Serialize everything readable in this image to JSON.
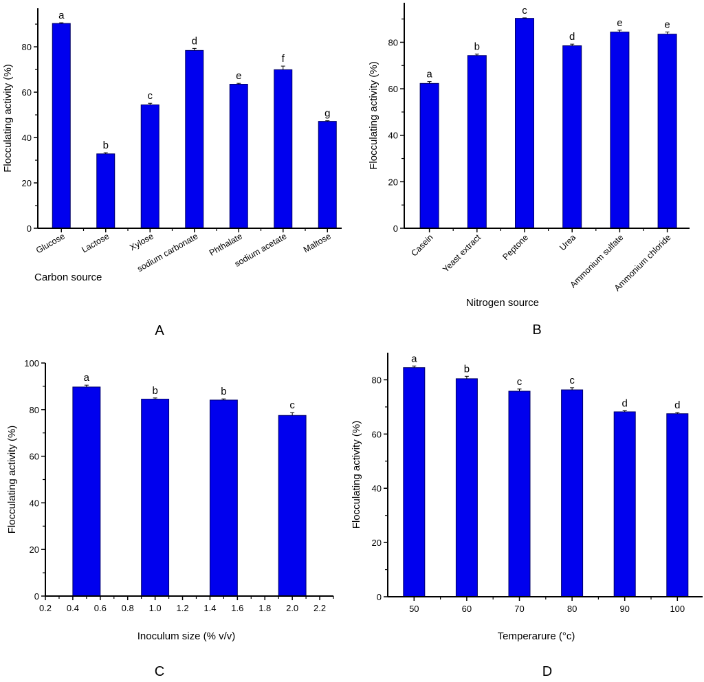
{
  "colors": {
    "bar": "#0000ee",
    "bar_edge": "#000066",
    "axis": "#000000"
  },
  "chart_data": [
    {
      "id": "A",
      "panel_label": "A",
      "type": "bar",
      "title": "",
      "xlabel": "Carbon source",
      "ylabel": "Flocculating activity (%)",
      "ylim": [
        0,
        97
      ],
      "yticks": [
        0,
        20,
        40,
        60,
        80
      ],
      "yminor_step": 10,
      "categories": [
        "Glucose",
        "Lactose",
        "Xylose",
        "sodium carbonate",
        "Phthalate",
        "sodium acetate",
        "Maltose"
      ],
      "values": [
        90.3,
        32.8,
        54.4,
        78.4,
        63.5,
        69.9,
        47.1
      ],
      "errors": [
        0.3,
        0.5,
        0.7,
        0.9,
        0.4,
        1.6,
        0.3
      ],
      "significance": [
        "a",
        "b",
        "c",
        "d",
        "e",
        "f",
        "g"
      ],
      "grid": false
    },
    {
      "id": "B",
      "panel_label": "B",
      "type": "bar",
      "title": "",
      "xlabel": "Nitrogen source",
      "ylabel": "Flocculating activity (%)",
      "ylim": [
        0,
        97
      ],
      "yticks": [
        0,
        20,
        40,
        60,
        80
      ],
      "yminor_step": 10,
      "categories": [
        "Casein",
        "Yeast extract",
        "Peptone",
        "Urea",
        "Ammonium sulfate",
        "Ammonium chloride"
      ],
      "values": [
        62.3,
        74.3,
        90.3,
        78.5,
        84.4,
        83.5
      ],
      "errors": [
        0.8,
        0.6,
        0.2,
        0.7,
        0.8,
        0.9
      ],
      "significance": [
        "a",
        "b",
        "c",
        "d",
        "e",
        "e"
      ],
      "grid": false
    },
    {
      "id": "C",
      "panel_label": "C",
      "type": "bar",
      "title": "",
      "xlabel": "Inoculum size (% v/v)",
      "ylabel": "Flocculating activity (%)",
      "ylim": [
        0,
        100
      ],
      "yticks": [
        0,
        20,
        40,
        60,
        80,
        100
      ],
      "yminor_step": 10,
      "xlim": [
        0.2,
        2.3
      ],
      "xticks": [
        "0.2",
        "0.4",
        "0.6",
        "0.8",
        "1.0",
        "1.2",
        "1.4",
        "1.6",
        "1.8",
        "2.0",
        "2.2"
      ],
      "x": [
        0.5,
        1.0,
        1.5,
        2.0
      ],
      "bar_width": 0.2,
      "values": [
        89.7,
        84.5,
        84.1,
        77.5
      ],
      "errors": [
        0.8,
        0.5,
        0.5,
        1.2
      ],
      "significance": [
        "a",
        "b",
        "b",
        "c"
      ],
      "grid": false
    },
    {
      "id": "D",
      "panel_label": "D",
      "type": "bar",
      "title": "",
      "xlabel": "Temperarure (°c)",
      "ylabel": "Flocculating activity (%)",
      "ylim": [
        0,
        90
      ],
      "yticks": [
        0,
        20,
        40,
        60,
        80
      ],
      "yminor_step": 10,
      "categories": [
        "50",
        "60",
        "70",
        "80",
        "90",
        "100"
      ],
      "values": [
        84.5,
        80.4,
        75.8,
        76.3,
        68.2,
        67.5
      ],
      "errors": [
        0.6,
        0.9,
        0.8,
        0.8,
        0.4,
        0.4
      ],
      "significance": [
        "a",
        "b",
        "c",
        "c",
        "d",
        "d"
      ],
      "grid": false
    }
  ]
}
